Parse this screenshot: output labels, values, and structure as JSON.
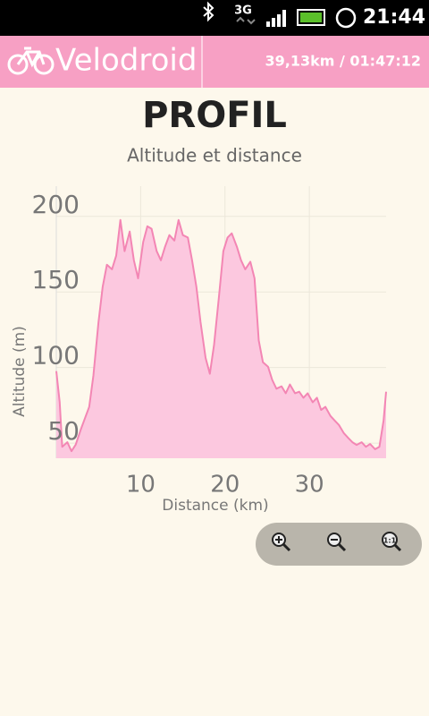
{
  "status_bar": {
    "network": "3G",
    "time": "21:44"
  },
  "app_bar": {
    "title": "Velodroid",
    "summary": "39,13km / 01:47:12"
  },
  "zoom": {
    "reset": "1:1"
  },
  "chart_data": {
    "type": "area",
    "title": "PROFIL",
    "subtitle": "Altitude et distance",
    "x_label": "Distance (km)",
    "y_label": "Altitude (m)",
    "x": [
      0,
      0.4,
      0.7,
      1.3,
      1.8,
      2.3,
      2.9,
      3.4,
      3.9,
      4.4,
      5,
      5.5,
      6,
      6.6,
      7.1,
      7.6,
      8.1,
      8.7,
      9.2,
      9.7,
      10.3,
      10.8,
      11.3,
      11.9,
      12.4,
      12.9,
      13.4,
      14,
      14.5,
      15,
      15.6,
      16.1,
      16.6,
      17.1,
      17.7,
      18.2,
      18.7,
      19.3,
      19.8,
      20.3,
      20.8,
      21.4,
      21.9,
      22.4,
      23,
      23.5,
      24,
      24.5,
      25.1,
      25.6,
      26.1,
      26.7,
      27.2,
      27.7,
      28.3,
      28.8,
      29.3,
      29.8,
      30.4,
      30.9,
      31.4,
      31.9,
      32.5,
      33,
      33.5,
      34.1,
      34.6,
      35.1,
      35.6,
      36.2,
      36.7,
      37.2,
      37.8,
      38.3,
      38.8,
      39.1
    ],
    "series": [
      {
        "name": "Altitude",
        "color": "#f386b4",
        "fill": "#fcc8df",
        "values": [
          97.6,
          77,
          47.6,
          50.6,
          44.7,
          49,
          59,
          66.5,
          74,
          94.7,
          130,
          153.5,
          168,
          165,
          174,
          197.6,
          177,
          190,
          171,
          159,
          183,
          193.5,
          191.8,
          177,
          171,
          180,
          187.6,
          184,
          197.6,
          187.6,
          186,
          171,
          153.5,
          130,
          106.5,
          95.9,
          115,
          147.6,
          177,
          186,
          188.8,
          180,
          171,
          165,
          170,
          159,
          118,
          103.5,
          100.6,
          91.8,
          86,
          87.6,
          83,
          88.8,
          83,
          84,
          80,
          83,
          77,
          80,
          72,
          74,
          68,
          65,
          62,
          56.5,
          53.5,
          50.6,
          48.8,
          50.6,
          47.6,
          49.4,
          46,
          47.6,
          65,
          84
        ]
      }
    ],
    "xlim": [
      0,
      39.1
    ],
    "ylim": [
      40,
      220
    ],
    "xticks": [
      10,
      20,
      30
    ],
    "yticks": [
      50,
      100,
      150,
      200
    ],
    "grid": true
  }
}
